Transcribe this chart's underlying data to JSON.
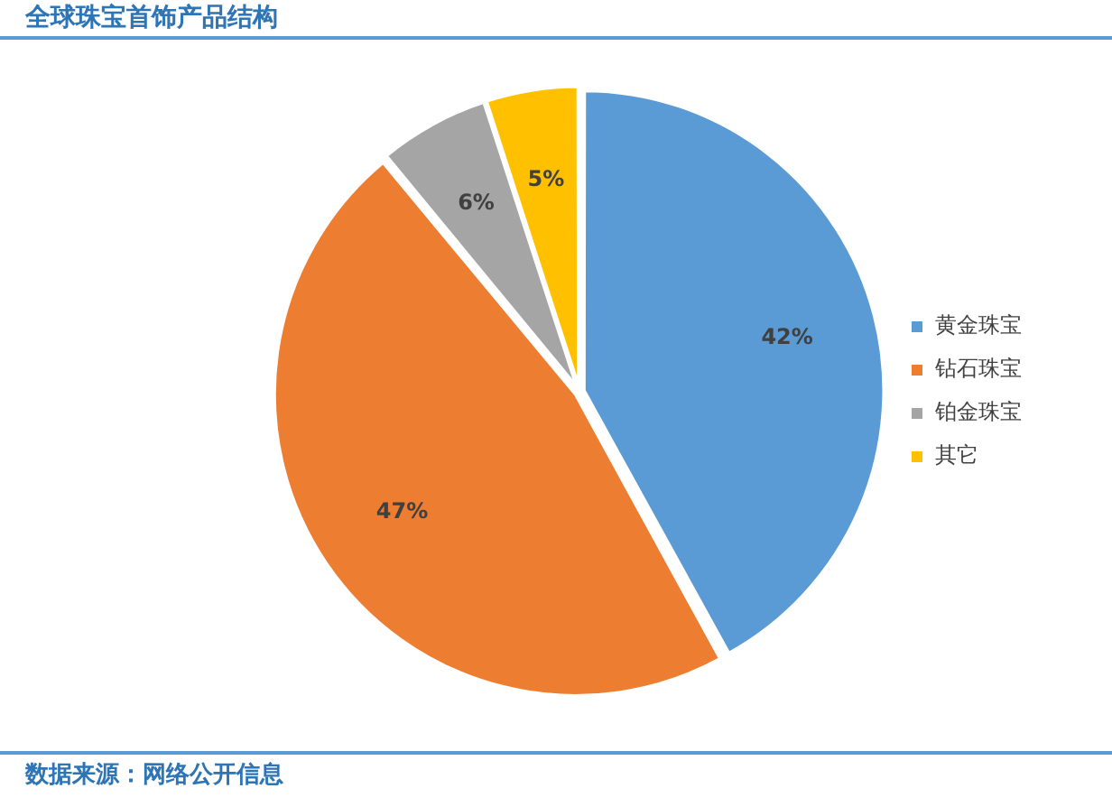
{
  "chart_data": {
    "type": "pie",
    "title": "全球珠宝首饰产品结构",
    "categories": [
      "黄金珠宝",
      "钻石珠宝",
      "铂金珠宝",
      "其它"
    ],
    "values": [
      42,
      47,
      6,
      5
    ],
    "value_labels": [
      "42%",
      "47%",
      "6%",
      "5%"
    ],
    "colors": [
      "#5b9bd5",
      "#ed7d31",
      "#a5a5a5",
      "#ffc000"
    ],
    "legend": "right",
    "annotations": [
      "数据来源：网络公开信息"
    ]
  }
}
